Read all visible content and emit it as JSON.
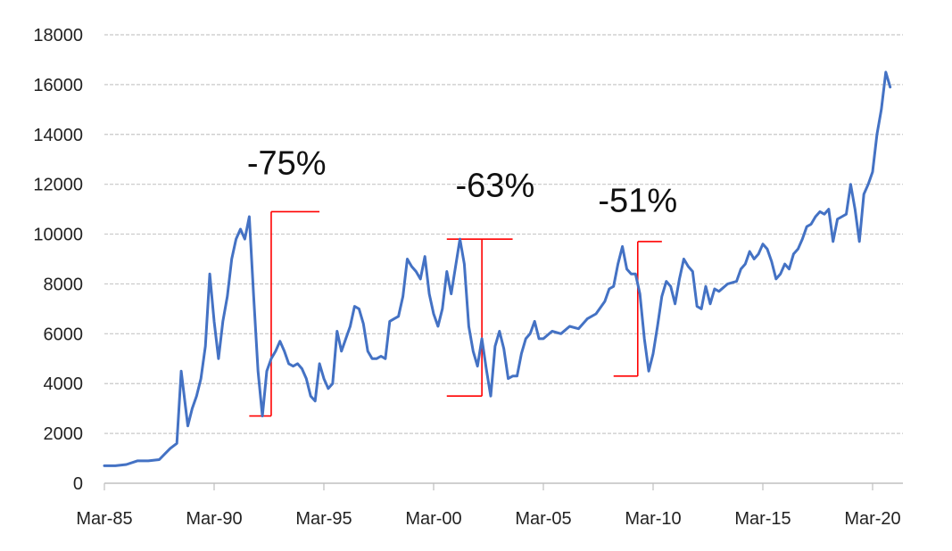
{
  "chart_data": {
    "type": "line",
    "title": "",
    "xlabel": "",
    "ylabel": "",
    "ylim": [
      0,
      18000
    ],
    "y_ticks": [
      0,
      2000,
      4000,
      6000,
      8000,
      10000,
      12000,
      14000,
      16000,
      18000
    ],
    "y_tick_labels": [
      "0",
      "2000",
      "4000",
      "6000",
      "8000",
      "10000",
      "12000",
      "14000",
      "16000",
      "18000"
    ],
    "x_ticks": [
      1985,
      1990,
      1995,
      2000,
      2005,
      2010,
      2015,
      2020
    ],
    "x_tick_labels": [
      "Mar-85",
      "Mar-90",
      "Mar-95",
      "Mar-00",
      "Mar-05",
      "Mar-10",
      "Mar-15",
      "Mar-20"
    ],
    "xlim": [
      1985,
      2021.3
    ],
    "grid": "horizontal",
    "legend": "none",
    "series": [
      {
        "color": "#4472C4",
        "points": [
          [
            1985.0,
            700
          ],
          [
            1985.5,
            700
          ],
          [
            1986.0,
            750
          ],
          [
            1986.5,
            900
          ],
          [
            1987.0,
            900
          ],
          [
            1987.5,
            950
          ],
          [
            1988.0,
            1400
          ],
          [
            1988.3,
            1600
          ],
          [
            1988.5,
            4500
          ],
          [
            1988.8,
            2300
          ],
          [
            1989.0,
            3000
          ],
          [
            1989.2,
            3500
          ],
          [
            1989.4,
            4200
          ],
          [
            1989.6,
            5500
          ],
          [
            1989.8,
            8400
          ],
          [
            1990.0,
            6500
          ],
          [
            1990.2,
            5000
          ],
          [
            1990.4,
            6500
          ],
          [
            1990.6,
            7500
          ],
          [
            1990.8,
            9000
          ],
          [
            1991.0,
            9800
          ],
          [
            1991.2,
            10200
          ],
          [
            1991.4,
            9800
          ],
          [
            1991.6,
            10700
          ],
          [
            1991.8,
            7500
          ],
          [
            1992.0,
            4500
          ],
          [
            1992.2,
            2700
          ],
          [
            1992.4,
            4500
          ],
          [
            1992.6,
            5000
          ],
          [
            1992.8,
            5300
          ],
          [
            1993.0,
            5700
          ],
          [
            1993.2,
            5300
          ],
          [
            1993.4,
            4800
          ],
          [
            1993.6,
            4700
          ],
          [
            1993.8,
            4800
          ],
          [
            1994.0,
            4600
          ],
          [
            1994.2,
            4200
          ],
          [
            1994.4,
            3500
          ],
          [
            1994.6,
            3300
          ],
          [
            1994.8,
            4800
          ],
          [
            1995.0,
            4200
          ],
          [
            1995.2,
            3800
          ],
          [
            1995.4,
            4000
          ],
          [
            1995.6,
            6100
          ],
          [
            1995.8,
            5300
          ],
          [
            1996.0,
            5800
          ],
          [
            1996.2,
            6300
          ],
          [
            1996.4,
            7100
          ],
          [
            1996.6,
            7000
          ],
          [
            1996.8,
            6400
          ],
          [
            1997.0,
            5300
          ],
          [
            1997.2,
            5000
          ],
          [
            1997.4,
            5000
          ],
          [
            1997.6,
            5100
          ],
          [
            1997.8,
            5000
          ],
          [
            1998.0,
            6500
          ],
          [
            1998.2,
            6600
          ],
          [
            1998.4,
            6700
          ],
          [
            1998.6,
            7500
          ],
          [
            1998.8,
            9000
          ],
          [
            1999.0,
            8700
          ],
          [
            1999.2,
            8500
          ],
          [
            1999.4,
            8200
          ],
          [
            1999.6,
            9100
          ],
          [
            1999.8,
            7600
          ],
          [
            2000.0,
            6800
          ],
          [
            2000.2,
            6300
          ],
          [
            2000.4,
            7000
          ],
          [
            2000.6,
            8500
          ],
          [
            2000.8,
            7600
          ],
          [
            2001.0,
            8700
          ],
          [
            2001.2,
            9800
          ],
          [
            2001.4,
            8800
          ],
          [
            2001.6,
            6300
          ],
          [
            2001.8,
            5300
          ],
          [
            2002.0,
            4700
          ],
          [
            2002.2,
            5800
          ],
          [
            2002.4,
            4600
          ],
          [
            2002.6,
            3500
          ],
          [
            2002.8,
            5500
          ],
          [
            2003.0,
            6100
          ],
          [
            2003.2,
            5400
          ],
          [
            2003.4,
            4200
          ],
          [
            2003.6,
            4300
          ],
          [
            2003.8,
            4300
          ],
          [
            2004.0,
            5200
          ],
          [
            2004.2,
            5800
          ],
          [
            2004.4,
            6000
          ],
          [
            2004.6,
            6500
          ],
          [
            2004.8,
            5800
          ],
          [
            2005.0,
            5800
          ],
          [
            2005.4,
            6100
          ],
          [
            2005.8,
            6000
          ],
          [
            2006.2,
            6300
          ],
          [
            2006.6,
            6200
          ],
          [
            2007.0,
            6600
          ],
          [
            2007.4,
            6800
          ],
          [
            2007.8,
            7300
          ],
          [
            2008.0,
            7800
          ],
          [
            2008.2,
            7900
          ],
          [
            2008.4,
            8800
          ],
          [
            2008.6,
            9500
          ],
          [
            2008.8,
            8600
          ],
          [
            2009.0,
            8400
          ],
          [
            2009.2,
            8400
          ],
          [
            2009.4,
            7600
          ],
          [
            2009.6,
            5800
          ],
          [
            2009.8,
            4500
          ],
          [
            2010.0,
            5200
          ],
          [
            2010.2,
            6300
          ],
          [
            2010.4,
            7500
          ],
          [
            2010.6,
            8100
          ],
          [
            2010.8,
            7900
          ],
          [
            2011.0,
            7200
          ],
          [
            2011.2,
            8200
          ],
          [
            2011.4,
            9000
          ],
          [
            2011.6,
            8700
          ],
          [
            2011.8,
            8500
          ],
          [
            2012.0,
            7100
          ],
          [
            2012.2,
            7000
          ],
          [
            2012.4,
            7900
          ],
          [
            2012.6,
            7200
          ],
          [
            2012.8,
            7800
          ],
          [
            2013.0,
            7700
          ],
          [
            2013.4,
            8000
          ],
          [
            2013.8,
            8100
          ],
          [
            2014.0,
            8600
          ],
          [
            2014.2,
            8800
          ],
          [
            2014.4,
            9300
          ],
          [
            2014.6,
            9000
          ],
          [
            2014.8,
            9200
          ],
          [
            2015.0,
            9600
          ],
          [
            2015.2,
            9400
          ],
          [
            2015.4,
            8900
          ],
          [
            2015.6,
            8200
          ],
          [
            2015.8,
            8400
          ],
          [
            2016.0,
            8800
          ],
          [
            2016.2,
            8600
          ],
          [
            2016.4,
            9200
          ],
          [
            2016.6,
            9400
          ],
          [
            2016.8,
            9800
          ],
          [
            2017.0,
            10300
          ],
          [
            2017.2,
            10400
          ],
          [
            2017.4,
            10700
          ],
          [
            2017.6,
            10900
          ],
          [
            2017.8,
            10800
          ],
          [
            2018.0,
            11000
          ],
          [
            2018.2,
            9700
          ],
          [
            2018.4,
            10600
          ],
          [
            2018.6,
            10700
          ],
          [
            2018.8,
            10800
          ],
          [
            2019.0,
            12000
          ],
          [
            2019.2,
            11000
          ],
          [
            2019.4,
            9700
          ],
          [
            2019.6,
            11600
          ],
          [
            2019.8,
            12000
          ],
          [
            2020.0,
            12500
          ],
          [
            2020.2,
            14000
          ],
          [
            2020.4,
            15000
          ],
          [
            2020.6,
            16500
          ],
          [
            2020.8,
            15900
          ]
        ]
      }
    ],
    "annotations": [
      {
        "label": "-75%",
        "color": "#FF0000",
        "x": 1992.6,
        "y_top": 10900,
        "y_bottom": 2700,
        "top_left": 1992.6,
        "top_right": 1994.8,
        "bottom_left": 1991.6,
        "bottom_right": 1992.6,
        "label_x": 1993.3,
        "label_y": 12400
      },
      {
        "label": "-63%",
        "color": "#FF0000",
        "x": 2002.2,
        "y_top": 9800,
        "y_bottom": 3500,
        "top_left": 2000.6,
        "top_right": 2003.6,
        "bottom_left": 2000.6,
        "bottom_right": 2002.2,
        "label_x": 2002.8,
        "label_y": 11500
      },
      {
        "label": "-51%",
        "color": "#FF0000",
        "x": 2009.3,
        "y_top": 9700,
        "y_bottom": 4300,
        "top_left": 2009.3,
        "top_right": 2010.4,
        "bottom_left": 2008.2,
        "bottom_right": 2009.3,
        "label_x": 2009.3,
        "label_y": 10900
      }
    ]
  }
}
